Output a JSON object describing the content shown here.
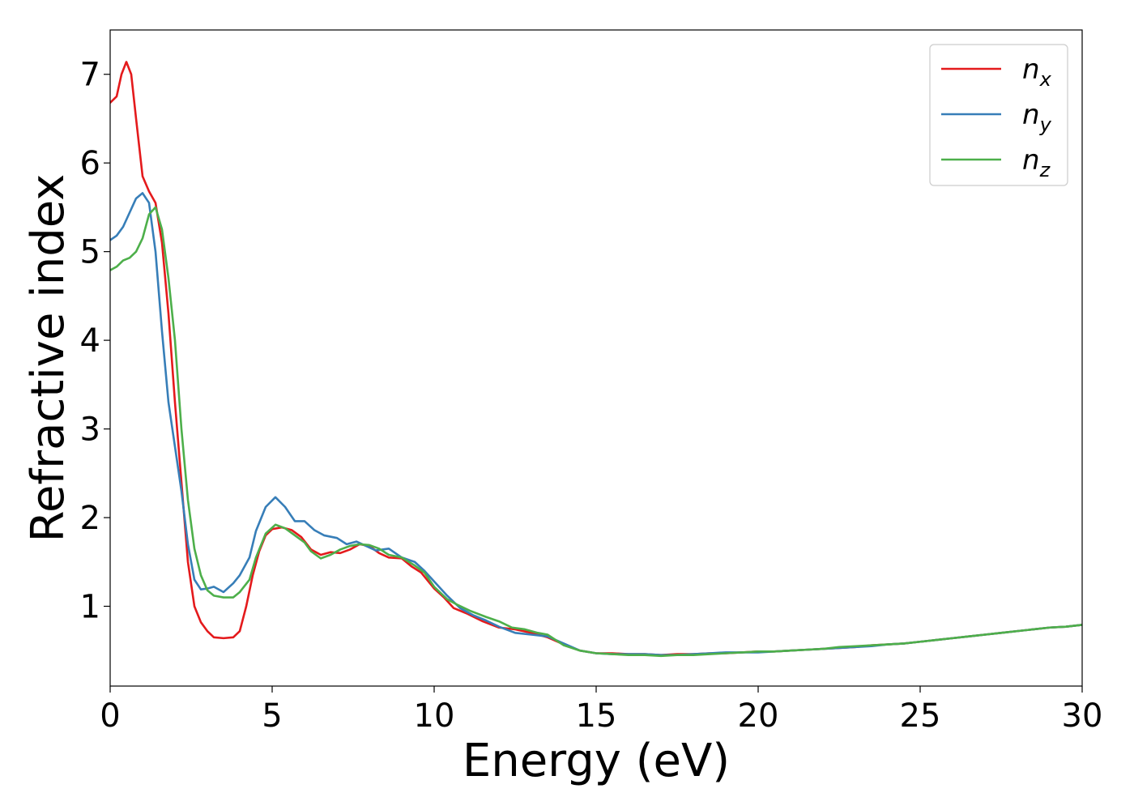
{
  "chart_data": {
    "type": "line",
    "title": "",
    "xlabel": "Energy (eV)",
    "ylabel": "Refractive index",
    "xlim": [
      0,
      30
    ],
    "ylim": [
      0.1,
      7.5
    ],
    "xticks": [
      0,
      5,
      10,
      15,
      20,
      25,
      30
    ],
    "yticks": [
      1,
      2,
      3,
      4,
      5,
      6,
      7
    ],
    "grid": false,
    "legend_position": "top-right",
    "series": [
      {
        "name": "n",
        "subscript": "x",
        "color": "#e41a1c",
        "points": [
          [
            0.0,
            6.68
          ],
          [
            0.2,
            6.75
          ],
          [
            0.35,
            7.0
          ],
          [
            0.5,
            7.14
          ],
          [
            0.65,
            7.0
          ],
          [
            0.8,
            6.5
          ],
          [
            1.0,
            5.85
          ],
          [
            1.2,
            5.68
          ],
          [
            1.4,
            5.55
          ],
          [
            1.6,
            5.1
          ],
          [
            1.8,
            4.3
          ],
          [
            2.0,
            3.3
          ],
          [
            2.2,
            2.4
          ],
          [
            2.4,
            1.5
          ],
          [
            2.6,
            1.0
          ],
          [
            2.8,
            0.82
          ],
          [
            3.0,
            0.72
          ],
          [
            3.2,
            0.65
          ],
          [
            3.5,
            0.64
          ],
          [
            3.8,
            0.65
          ],
          [
            4.0,
            0.72
          ],
          [
            4.2,
            1.0
          ],
          [
            4.4,
            1.35
          ],
          [
            4.6,
            1.62
          ],
          [
            4.8,
            1.8
          ],
          [
            5.0,
            1.87
          ],
          [
            5.3,
            1.89
          ],
          [
            5.6,
            1.86
          ],
          [
            5.9,
            1.78
          ],
          [
            6.2,
            1.64
          ],
          [
            6.5,
            1.58
          ],
          [
            6.8,
            1.61
          ],
          [
            7.1,
            1.6
          ],
          [
            7.4,
            1.64
          ],
          [
            7.7,
            1.7
          ],
          [
            8.0,
            1.68
          ],
          [
            8.3,
            1.6
          ],
          [
            8.6,
            1.55
          ],
          [
            9.0,
            1.54
          ],
          [
            9.3,
            1.45
          ],
          [
            9.6,
            1.38
          ],
          [
            10.0,
            1.2
          ],
          [
            10.3,
            1.1
          ],
          [
            10.6,
            0.98
          ],
          [
            11.0,
            0.92
          ],
          [
            11.5,
            0.83
          ],
          [
            12.0,
            0.76
          ],
          [
            12.5,
            0.74
          ],
          [
            13.0,
            0.7
          ],
          [
            13.5,
            0.65
          ],
          [
            14.0,
            0.57
          ],
          [
            14.5,
            0.5
          ],
          [
            15.0,
            0.47
          ],
          [
            15.5,
            0.47
          ],
          [
            16.0,
            0.46
          ],
          [
            16.5,
            0.46
          ],
          [
            17.0,
            0.45
          ],
          [
            17.5,
            0.46
          ],
          [
            18.0,
            0.46
          ],
          [
            18.5,
            0.47
          ],
          [
            19.0,
            0.47
          ],
          [
            19.5,
            0.48
          ],
          [
            20.0,
            0.49
          ],
          [
            20.5,
            0.49
          ],
          [
            21.0,
            0.5
          ],
          [
            21.5,
            0.51
          ],
          [
            22.0,
            0.52
          ],
          [
            22.5,
            0.53
          ],
          [
            23.0,
            0.54
          ],
          [
            23.5,
            0.56
          ],
          [
            24.0,
            0.57
          ],
          [
            24.5,
            0.58
          ],
          [
            25.0,
            0.6
          ],
          [
            25.5,
            0.62
          ],
          [
            26.0,
            0.64
          ],
          [
            26.5,
            0.66
          ],
          [
            27.0,
            0.68
          ],
          [
            27.5,
            0.7
          ],
          [
            28.0,
            0.72
          ],
          [
            28.5,
            0.74
          ],
          [
            29.0,
            0.76
          ],
          [
            29.5,
            0.77
          ],
          [
            30.0,
            0.79
          ]
        ]
      },
      {
        "name": "n",
        "subscript": "y",
        "color": "#377eb8",
        "points": [
          [
            0.0,
            5.13
          ],
          [
            0.2,
            5.18
          ],
          [
            0.4,
            5.28
          ],
          [
            0.6,
            5.44
          ],
          [
            0.8,
            5.6
          ],
          [
            1.0,
            5.66
          ],
          [
            1.2,
            5.55
          ],
          [
            1.4,
            5.0
          ],
          [
            1.6,
            4.1
          ],
          [
            1.8,
            3.3
          ],
          [
            2.0,
            2.8
          ],
          [
            2.2,
            2.3
          ],
          [
            2.4,
            1.7
          ],
          [
            2.6,
            1.3
          ],
          [
            2.8,
            1.19
          ],
          [
            3.0,
            1.2
          ],
          [
            3.2,
            1.22
          ],
          [
            3.5,
            1.16
          ],
          [
            3.8,
            1.26
          ],
          [
            4.0,
            1.35
          ],
          [
            4.3,
            1.55
          ],
          [
            4.5,
            1.85
          ],
          [
            4.8,
            2.12
          ],
          [
            5.1,
            2.23
          ],
          [
            5.4,
            2.12
          ],
          [
            5.7,
            1.96
          ],
          [
            6.0,
            1.96
          ],
          [
            6.3,
            1.86
          ],
          [
            6.6,
            1.8
          ],
          [
            7.0,
            1.77
          ],
          [
            7.3,
            1.7
          ],
          [
            7.6,
            1.73
          ],
          [
            7.9,
            1.68
          ],
          [
            8.2,
            1.63
          ],
          [
            8.6,
            1.65
          ],
          [
            9.0,
            1.55
          ],
          [
            9.4,
            1.5
          ],
          [
            9.7,
            1.4
          ],
          [
            10.0,
            1.28
          ],
          [
            10.4,
            1.12
          ],
          [
            10.8,
            0.98
          ],
          [
            11.2,
            0.9
          ],
          [
            11.6,
            0.84
          ],
          [
            12.0,
            0.77
          ],
          [
            12.5,
            0.7
          ],
          [
            13.0,
            0.68
          ],
          [
            13.5,
            0.66
          ],
          [
            14.0,
            0.58
          ],
          [
            14.5,
            0.5
          ],
          [
            15.0,
            0.47
          ],
          [
            15.5,
            0.46
          ],
          [
            16.0,
            0.46
          ],
          [
            16.5,
            0.46
          ],
          [
            17.0,
            0.45
          ],
          [
            17.5,
            0.45
          ],
          [
            18.0,
            0.46
          ],
          [
            18.5,
            0.47
          ],
          [
            19.0,
            0.48
          ],
          [
            19.5,
            0.48
          ],
          [
            20.0,
            0.48
          ],
          [
            20.5,
            0.49
          ],
          [
            21.0,
            0.5
          ],
          [
            21.5,
            0.51
          ],
          [
            22.0,
            0.52
          ],
          [
            22.5,
            0.53
          ],
          [
            23.0,
            0.54
          ],
          [
            23.5,
            0.55
          ],
          [
            24.0,
            0.57
          ],
          [
            24.5,
            0.58
          ],
          [
            25.0,
            0.6
          ],
          [
            25.5,
            0.62
          ],
          [
            26.0,
            0.64
          ],
          [
            26.5,
            0.66
          ],
          [
            27.0,
            0.68
          ],
          [
            27.5,
            0.7
          ],
          [
            28.0,
            0.72
          ],
          [
            28.5,
            0.74
          ],
          [
            29.0,
            0.76
          ],
          [
            29.5,
            0.77
          ],
          [
            30.0,
            0.79
          ]
        ]
      },
      {
        "name": "n",
        "subscript": "z",
        "color": "#4daf4a",
        "points": [
          [
            0.0,
            4.79
          ],
          [
            0.2,
            4.83
          ],
          [
            0.4,
            4.9
          ],
          [
            0.6,
            4.93
          ],
          [
            0.8,
            5.0
          ],
          [
            1.0,
            5.15
          ],
          [
            1.2,
            5.42
          ],
          [
            1.4,
            5.5
          ],
          [
            1.6,
            5.25
          ],
          [
            1.8,
            4.7
          ],
          [
            2.0,
            4.0
          ],
          [
            2.2,
            3.0
          ],
          [
            2.4,
            2.2
          ],
          [
            2.6,
            1.65
          ],
          [
            2.8,
            1.35
          ],
          [
            3.0,
            1.18
          ],
          [
            3.2,
            1.12
          ],
          [
            3.5,
            1.1
          ],
          [
            3.8,
            1.1
          ],
          [
            4.0,
            1.16
          ],
          [
            4.3,
            1.3
          ],
          [
            4.5,
            1.55
          ],
          [
            4.8,
            1.82
          ],
          [
            5.1,
            1.92
          ],
          [
            5.4,
            1.88
          ],
          [
            5.7,
            1.8
          ],
          [
            6.0,
            1.72
          ],
          [
            6.2,
            1.62
          ],
          [
            6.5,
            1.54
          ],
          [
            6.8,
            1.58
          ],
          [
            7.1,
            1.64
          ],
          [
            7.4,
            1.68
          ],
          [
            7.7,
            1.7
          ],
          [
            8.0,
            1.69
          ],
          [
            8.3,
            1.65
          ],
          [
            8.6,
            1.58
          ],
          [
            9.0,
            1.55
          ],
          [
            9.4,
            1.46
          ],
          [
            9.7,
            1.38
          ],
          [
            10.0,
            1.22
          ],
          [
            10.4,
            1.08
          ],
          [
            10.7,
            1.02
          ],
          [
            11.1,
            0.95
          ],
          [
            11.6,
            0.88
          ],
          [
            12.0,
            0.83
          ],
          [
            12.4,
            0.76
          ],
          [
            12.8,
            0.74
          ],
          [
            13.2,
            0.7
          ],
          [
            13.5,
            0.68
          ],
          [
            14.0,
            0.56
          ],
          [
            14.5,
            0.5
          ],
          [
            15.0,
            0.47
          ],
          [
            15.5,
            0.46
          ],
          [
            16.0,
            0.45
          ],
          [
            16.5,
            0.45
          ],
          [
            17.0,
            0.44
          ],
          [
            17.5,
            0.45
          ],
          [
            18.0,
            0.45
          ],
          [
            18.5,
            0.46
          ],
          [
            19.0,
            0.47
          ],
          [
            19.5,
            0.48
          ],
          [
            20.0,
            0.49
          ],
          [
            20.5,
            0.49
          ],
          [
            21.0,
            0.5
          ],
          [
            21.5,
            0.51
          ],
          [
            22.0,
            0.52
          ],
          [
            22.5,
            0.54
          ],
          [
            23.0,
            0.55
          ],
          [
            23.5,
            0.56
          ],
          [
            24.0,
            0.57
          ],
          [
            24.5,
            0.58
          ],
          [
            25.0,
            0.6
          ],
          [
            25.5,
            0.62
          ],
          [
            26.0,
            0.64
          ],
          [
            26.5,
            0.66
          ],
          [
            27.0,
            0.68
          ],
          [
            27.5,
            0.7
          ],
          [
            28.0,
            0.72
          ],
          [
            28.5,
            0.74
          ],
          [
            29.0,
            0.76
          ],
          [
            29.5,
            0.77
          ],
          [
            30.0,
            0.79
          ]
        ]
      }
    ]
  }
}
